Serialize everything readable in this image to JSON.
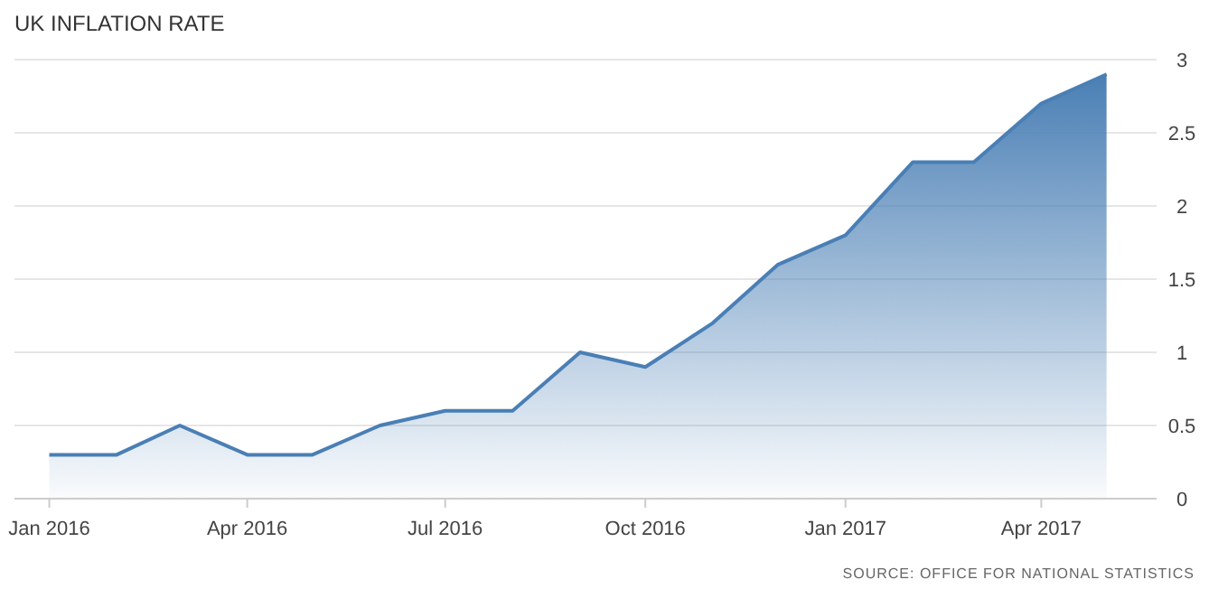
{
  "chart_data": {
    "type": "area",
    "title": "UK INFLATION RATE",
    "x": [
      "2016-01",
      "2016-02",
      "2016-03",
      "2016-04",
      "2016-05",
      "2016-06",
      "2016-07",
      "2016-08",
      "2016-09",
      "2016-10",
      "2016-11",
      "2016-12",
      "2017-01",
      "2017-02",
      "2017-03",
      "2017-04",
      "2017-05"
    ],
    "series": [
      {
        "color": "#4a7fb5",
        "values": [
          0.3,
          0.3,
          0.5,
          0.3,
          0.3,
          0.5,
          0.6,
          0.6,
          1.0,
          0.9,
          1.2,
          1.6,
          1.8,
          2.3,
          2.3,
          2.7,
          2.9
        ]
      }
    ],
    "xlim": [
      "2015-12-16",
      "2017-05-24"
    ],
    "xticks": [
      {
        "value": "2016-01",
        "label": "Jan 2016"
      },
      {
        "value": "2016-04",
        "label": "Apr 2016"
      },
      {
        "value": "2016-07",
        "label": "Jul 2016"
      },
      {
        "value": "2016-10",
        "label": "Oct 2016"
      },
      {
        "value": "2017-01",
        "label": "Jan 2017"
      },
      {
        "value": "2017-04",
        "label": "Apr 2017"
      }
    ],
    "ylim": [
      0,
      3
    ],
    "yticks": [
      0,
      0.5,
      1,
      1.5,
      2,
      2.5,
      3
    ],
    "grid": "y",
    "marker": "none",
    "annotations": [
      "SOURCE: OFFICE FOR NATIONAL STATISTICS"
    ]
  }
}
